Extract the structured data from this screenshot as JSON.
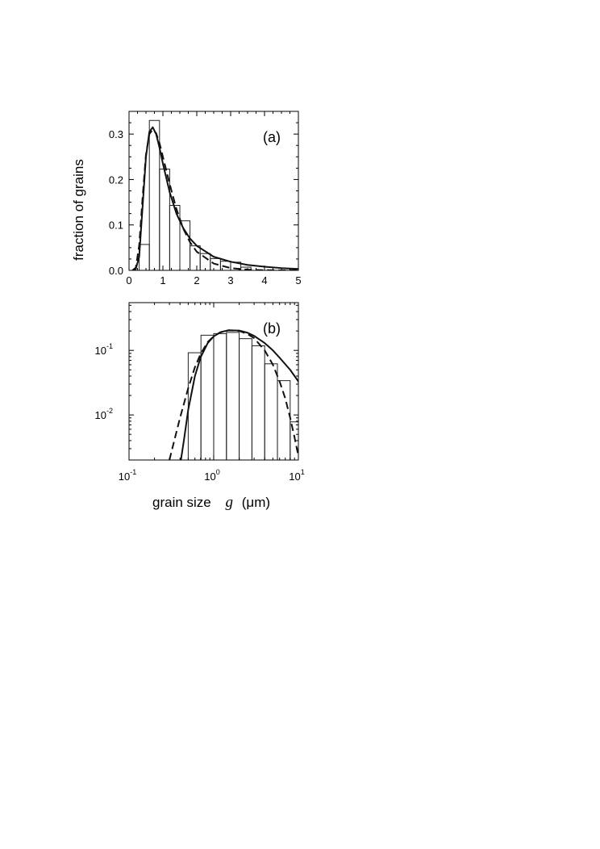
{
  "figure": {
    "ylabel": "fraction of grains",
    "xlabel": "grain size",
    "xlabel_symbol": "g",
    "xlabel_unit": "(μm)"
  },
  "chart_data": [
    {
      "type": "bar",
      "panel_label": "(a)",
      "xscale": "linear",
      "yscale": "linear",
      "xlim": [
        0,
        5
      ],
      "ylim": [
        0,
        0.35
      ],
      "xticks": [
        0,
        1,
        2,
        3,
        4,
        5
      ],
      "xtick_labels": [
        "0",
        "1",
        "2",
        "3",
        "4",
        "5"
      ],
      "yticks": [
        0.0,
        0.1,
        0.2,
        0.3
      ],
      "ytick_labels": [
        "0.0",
        "0.1",
        "0.2",
        "0.3"
      ],
      "bin_width": 0.3,
      "bins": [
        {
          "x0": 0.3,
          "value": 0.057
        },
        {
          "x0": 0.6,
          "value": 0.33
        },
        {
          "x0": 0.9,
          "value": 0.223
        },
        {
          "x0": 1.2,
          "value": 0.143
        },
        {
          "x0": 1.5,
          "value": 0.109
        },
        {
          "x0": 1.8,
          "value": 0.054
        },
        {
          "x0": 2.1,
          "value": 0.037
        },
        {
          "x0": 2.4,
          "value": 0.026
        },
        {
          "x0": 2.7,
          "value": 0.02
        },
        {
          "x0": 3.0,
          "value": 0.018
        },
        {
          "x0": 3.3,
          "value": 0.007
        }
      ],
      "series": [
        {
          "style": "solid",
          "x": [
            0.1,
            0.2,
            0.3,
            0.4,
            0.5,
            0.6,
            0.7,
            0.8,
            0.9,
            1.0,
            1.2,
            1.4,
            1.6,
            1.8,
            2.0,
            2.5,
            3.0,
            3.5,
            4.0,
            4.5,
            5.0
          ],
          "y": [
            0.0,
            0.003,
            0.03,
            0.14,
            0.25,
            0.305,
            0.315,
            0.3,
            0.27,
            0.235,
            0.172,
            0.125,
            0.093,
            0.07,
            0.054,
            0.03,
            0.019,
            0.012,
            0.008,
            0.005,
            0.003
          ]
        },
        {
          "style": "dashed",
          "x": [
            0.1,
            0.2,
            0.3,
            0.4,
            0.5,
            0.6,
            0.7,
            0.8,
            0.9,
            1.0,
            1.2,
            1.4,
            1.6,
            1.8,
            2.0,
            2.5,
            3.0,
            3.5,
            4.0,
            4.5,
            5.0
          ],
          "y": [
            0.0,
            0.006,
            0.055,
            0.16,
            0.255,
            0.3,
            0.31,
            0.302,
            0.28,
            0.25,
            0.19,
            0.135,
            0.092,
            0.062,
            0.041,
            0.015,
            0.005,
            0.0015,
            0.0004,
            0.0001,
            0.0
          ]
        }
      ]
    },
    {
      "type": "bar",
      "panel_label": "(b)",
      "xscale": "log",
      "yscale": "log",
      "xlim": [
        0.1,
        10
      ],
      "ylim": [
        0.002,
        0.55
      ],
      "xticks": [
        0.1,
        1,
        10
      ],
      "xtick_labels": [
        {
          "base": "10",
          "exp": "-1"
        },
        {
          "base": "10",
          "exp": "0"
        },
        {
          "base": "10",
          "exp": "1"
        }
      ],
      "yticks": [
        0.01,
        0.1
      ],
      "ytick_labels": [
        {
          "base": "10",
          "exp": "-2"
        },
        {
          "base": "10",
          "exp": "-1"
        }
      ],
      "bin_ratio": 1.413,
      "bins": [
        {
          "x0": 0.5,
          "value": 0.092
        },
        {
          "x0": 0.707,
          "value": 0.172
        },
        {
          "x0": 1.0,
          "value": 0.182
        },
        {
          "x0": 1.414,
          "value": 0.19
        },
        {
          "x0": 2.0,
          "value": 0.152
        },
        {
          "x0": 2.83,
          "value": 0.118
        },
        {
          "x0": 4.0,
          "value": 0.062
        },
        {
          "x0": 5.66,
          "value": 0.034
        },
        {
          "x0": 8.0,
          "value": 0.0078
        }
      ],
      "series": [
        {
          "style": "solid",
          "x": [
            0.41,
            0.45,
            0.5,
            0.6,
            0.7,
            0.85,
            1.0,
            1.2,
            1.5,
            2.0,
            2.5,
            3.0,
            4.0,
            5.0,
            6.0,
            8.0,
            10.0,
            11.5
          ],
          "y": [
            0.002,
            0.0045,
            0.012,
            0.04,
            0.078,
            0.13,
            0.165,
            0.192,
            0.205,
            0.203,
            0.188,
            0.168,
            0.13,
            0.1,
            0.077,
            0.05,
            0.033,
            0.017
          ]
        },
        {
          "style": "dashed",
          "x": [
            0.3,
            0.35,
            0.4,
            0.5,
            0.6,
            0.7,
            0.85,
            1.0,
            1.2,
            1.5,
            2.0,
            2.5,
            3.0,
            4.0,
            5.0,
            6.0,
            7.0,
            8.0,
            9.0,
            10.0,
            10.7
          ],
          "y": [
            0.002,
            0.0045,
            0.009,
            0.026,
            0.055,
            0.088,
            0.135,
            0.165,
            0.19,
            0.205,
            0.2,
            0.18,
            0.155,
            0.1,
            0.06,
            0.033,
            0.018,
            0.009,
            0.0045,
            0.0023,
            0.0017
          ]
        }
      ]
    }
  ]
}
